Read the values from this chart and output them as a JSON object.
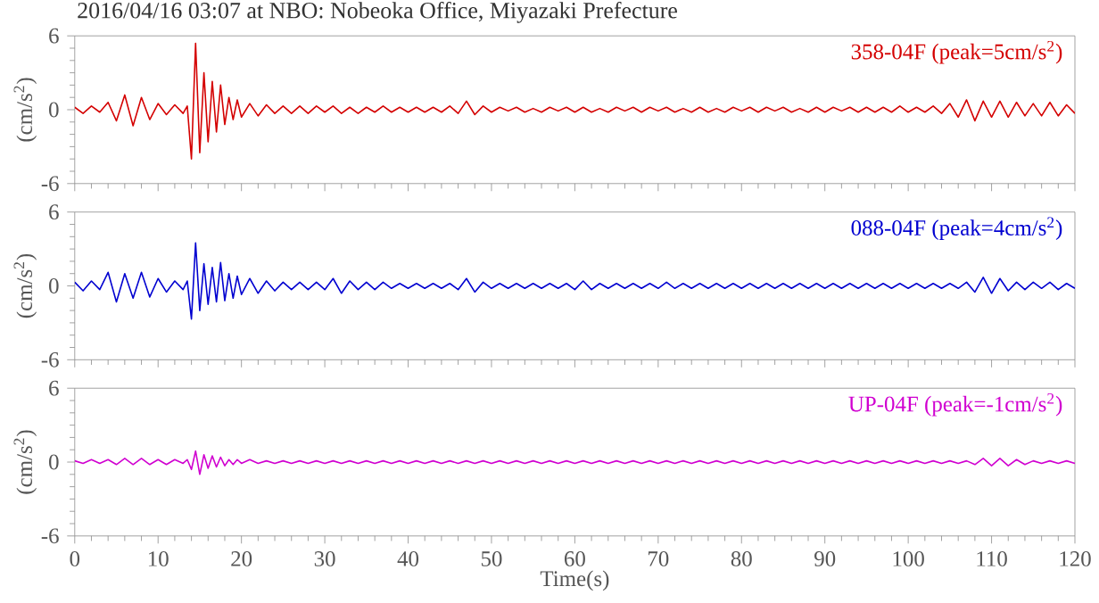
{
  "chart_data": [
    {
      "type": "line",
      "title": "2016/04/16 03:07 at NBO: Nobeoka Office, Miyazaki Prefecture",
      "ylabel": "(cm/s$^{2}$)",
      "xlim": [
        0,
        120
      ],
      "ylim": [
        -6,
        6
      ],
      "xticks": [
        0,
        10,
        20,
        30,
        40,
        50,
        60,
        70,
        80,
        90,
        100,
        110,
        120
      ],
      "yticks": [
        -6,
        0,
        6
      ],
      "tick_labels": "y",
      "x": [
        0,
        1,
        2,
        3,
        4,
        5,
        6,
        7,
        8,
        9,
        10,
        11,
        12,
        13,
        13.5,
        14,
        14.5,
        15,
        15.5,
        16,
        16.5,
        17,
        17.5,
        18,
        18.5,
        19,
        19.5,
        20,
        21,
        22,
        23,
        24,
        25,
        26,
        27,
        28,
        29,
        30,
        31,
        32,
        33,
        34,
        35,
        36,
        37,
        38,
        39,
        40,
        41,
        42,
        43,
        44,
        45,
        46,
        47,
        48,
        49,
        50,
        51,
        52,
        53,
        54,
        55,
        56,
        57,
        58,
        59,
        60,
        61,
        62,
        63,
        64,
        65,
        66,
        67,
        68,
        69,
        70,
        71,
        72,
        73,
        74,
        75,
        76,
        77,
        78,
        79,
        80,
        81,
        82,
        83,
        84,
        85,
        86,
        87,
        88,
        89,
        90,
        91,
        92,
        93,
        94,
        95,
        96,
        97,
        98,
        99,
        100,
        101,
        102,
        103,
        104,
        105,
        106,
        107,
        108,
        109,
        110,
        111,
        112,
        113,
        114,
        115,
        116,
        117,
        118,
        119,
        120
      ],
      "series": [
        {
          "name": "358-04F (peak=5cm/s$^{2}$)",
          "color": "#d40000",
          "values": [
            0.2,
            -0.3,
            0.3,
            -0.2,
            0.6,
            -0.9,
            1.2,
            -1.3,
            1.0,
            -0.8,
            0.5,
            -0.4,
            0.4,
            -0.3,
            0.3,
            -4.0,
            5.4,
            -3.5,
            3.0,
            -2.6,
            2.3,
            -1.8,
            2.0,
            -1.2,
            1.0,
            -0.8,
            0.8,
            -0.6,
            0.5,
            -0.5,
            0.4,
            -0.3,
            0.3,
            -0.3,
            0.3,
            -0.3,
            0.3,
            -0.2,
            0.3,
            -0.3,
            0.2,
            -0.3,
            0.2,
            -0.2,
            0.3,
            -0.2,
            0.2,
            -0.2,
            0.2,
            -0.2,
            0.2,
            -0.2,
            0.3,
            -0.3,
            0.7,
            -0.4,
            0.3,
            -0.2,
            0.2,
            -0.1,
            0.2,
            -0.2,
            0.1,
            -0.2,
            0.2,
            -0.1,
            0.2,
            -0.2,
            0.2,
            -0.2,
            0.1,
            -0.2,
            0.2,
            -0.1,
            0.2,
            -0.2,
            0.2,
            -0.1,
            0.2,
            -0.2,
            0.1,
            -0.2,
            0.2,
            -0.2,
            0.1,
            -0.2,
            0.2,
            -0.1,
            0.2,
            -0.2,
            0.2,
            -0.1,
            0.2,
            -0.2,
            0.1,
            -0.2,
            0.2,
            -0.2,
            0.2,
            -0.1,
            0.2,
            -0.2,
            0.2,
            -0.2,
            0.2,
            -0.2,
            0.3,
            -0.2,
            0.2,
            -0.2,
            0.3,
            -0.3,
            0.5,
            -0.6,
            0.8,
            -0.9,
            0.7,
            -0.6,
            0.7,
            -0.6,
            0.6,
            -0.5,
            0.5,
            -0.5,
            0.6,
            -0.5,
            0.4,
            -0.3
          ]
        }
      ]
    },
    {
      "type": "line",
      "ylabel": "(cm/s$^{2}$)",
      "xlim": [
        0,
        120
      ],
      "ylim": [
        -6,
        6
      ],
      "xticks": [
        0,
        10,
        20,
        30,
        40,
        50,
        60,
        70,
        80,
        90,
        100,
        110,
        120
      ],
      "yticks": [
        -6,
        0,
        6
      ],
      "tick_labels": "y",
      "x": [
        0,
        1,
        2,
        3,
        4,
        5,
        6,
        7,
        8,
        9,
        10,
        11,
        12,
        13,
        13.5,
        14,
        14.5,
        15,
        15.5,
        16,
        16.5,
        17,
        17.5,
        18,
        18.5,
        19,
        19.5,
        20,
        21,
        22,
        23,
        24,
        25,
        26,
        27,
        28,
        29,
        30,
        31,
        32,
        33,
        34,
        35,
        36,
        37,
        38,
        39,
        40,
        41,
        42,
        43,
        44,
        45,
        46,
        47,
        48,
        49,
        50,
        51,
        52,
        53,
        54,
        55,
        56,
        57,
        58,
        59,
        60,
        61,
        62,
        63,
        64,
        65,
        66,
        67,
        68,
        69,
        70,
        71,
        72,
        73,
        74,
        75,
        76,
        77,
        78,
        79,
        80,
        81,
        82,
        83,
        84,
        85,
        86,
        87,
        88,
        89,
        90,
        91,
        92,
        93,
        94,
        95,
        96,
        97,
        98,
        99,
        100,
        101,
        102,
        103,
        104,
        105,
        106,
        107,
        108,
        109,
        110,
        111,
        112,
        113,
        114,
        115,
        116,
        117,
        118,
        119,
        120
      ],
      "series": [
        {
          "name": "088-04F (peak=4cm/s$^{2}$)",
          "color": "#0000d0",
          "values": [
            0.3,
            -0.4,
            0.4,
            -0.3,
            1.1,
            -1.3,
            1.0,
            -1.0,
            1.1,
            -0.9,
            0.6,
            -0.5,
            0.4,
            -0.3,
            0.4,
            -2.7,
            3.5,
            -2.0,
            1.8,
            -1.5,
            1.5,
            -1.3,
            1.9,
            -1.2,
            1.0,
            -1.0,
            0.8,
            -0.7,
            0.6,
            -0.6,
            0.4,
            -0.4,
            0.3,
            -0.3,
            0.3,
            -0.3,
            0.3,
            -0.3,
            0.6,
            -0.6,
            0.4,
            -0.3,
            0.3,
            -0.3,
            0.3,
            -0.2,
            0.2,
            -0.2,
            0.2,
            -0.2,
            0.2,
            -0.2,
            0.2,
            -0.3,
            0.6,
            -0.5,
            0.3,
            -0.2,
            0.2,
            -0.2,
            0.2,
            -0.2,
            0.2,
            -0.2,
            0.2,
            -0.2,
            0.2,
            -0.3,
            0.4,
            -0.3,
            0.2,
            -0.2,
            0.2,
            -0.2,
            0.2,
            -0.2,
            0.2,
            -0.2,
            0.3,
            -0.2,
            0.2,
            -0.2,
            0.2,
            -0.2,
            0.2,
            -0.2,
            0.2,
            -0.2,
            0.2,
            -0.2,
            0.2,
            -0.2,
            0.2,
            -0.2,
            0.2,
            -0.2,
            0.2,
            -0.2,
            0.2,
            -0.2,
            0.2,
            -0.2,
            0.2,
            -0.2,
            0.2,
            -0.2,
            0.2,
            -0.2,
            0.2,
            -0.2,
            0.2,
            -0.2,
            0.2,
            -0.2,
            0.3,
            -0.5,
            0.7,
            -0.6,
            0.6,
            -0.4,
            0.3,
            -0.3,
            0.3,
            -0.2,
            0.3,
            -0.3,
            0.2,
            -0.2
          ]
        }
      ]
    },
    {
      "type": "line",
      "xlabel": "Time(s)",
      "ylabel": "(cm/s$^{2}$)",
      "xlim": [
        0,
        120
      ],
      "ylim": [
        -6,
        6
      ],
      "xticks": [
        0,
        10,
        20,
        30,
        40,
        50,
        60,
        70,
        80,
        90,
        100,
        110,
        120
      ],
      "yticks": [
        -6,
        0,
        6
      ],
      "x": [
        0,
        1,
        2,
        3,
        4,
        5,
        6,
        7,
        8,
        9,
        10,
        11,
        12,
        13,
        13.5,
        14,
        14.5,
        15,
        15.5,
        16,
        16.5,
        17,
        17.5,
        18,
        18.5,
        19,
        19.5,
        20,
        21,
        22,
        23,
        24,
        25,
        26,
        27,
        28,
        29,
        30,
        31,
        32,
        33,
        34,
        35,
        36,
        37,
        38,
        39,
        40,
        41,
        42,
        43,
        44,
        45,
        46,
        47,
        48,
        49,
        50,
        51,
        52,
        53,
        54,
        55,
        56,
        57,
        58,
        59,
        60,
        61,
        62,
        63,
        64,
        65,
        66,
        67,
        68,
        69,
        70,
        71,
        72,
        73,
        74,
        75,
        76,
        77,
        78,
        79,
        80,
        81,
        82,
        83,
        84,
        85,
        86,
        87,
        88,
        89,
        90,
        91,
        92,
        93,
        94,
        95,
        96,
        97,
        98,
        99,
        100,
        101,
        102,
        103,
        104,
        105,
        106,
        107,
        108,
        109,
        110,
        111,
        112,
        113,
        114,
        115,
        116,
        117,
        118,
        119,
        120
      ],
      "series": [
        {
          "name": "UP-04F (peak=-1cm/s$^{2}$)",
          "color": "#d000d0",
          "values": [
            0.1,
            -0.1,
            0.2,
            -0.1,
            0.2,
            -0.2,
            0.3,
            -0.2,
            0.3,
            -0.2,
            0.2,
            -0.2,
            0.2,
            -0.1,
            0.2,
            -0.6,
            0.9,
            -1.0,
            0.6,
            -0.5,
            0.5,
            -0.4,
            0.4,
            -0.3,
            0.2,
            -0.2,
            0.2,
            -0.1,
            0.2,
            -0.1,
            0.1,
            -0.1,
            0.1,
            -0.1,
            0.1,
            -0.1,
            0.1,
            -0.1,
            0.1,
            -0.1,
            0.1,
            -0.1,
            0.1,
            -0.1,
            0.1,
            -0.1,
            0.1,
            -0.1,
            0.1,
            -0.1,
            0.1,
            -0.1,
            0.1,
            -0.1,
            0.1,
            -0.1,
            0.1,
            -0.1,
            0.1,
            -0.1,
            0.1,
            -0.1,
            0.1,
            -0.1,
            0.1,
            -0.1,
            0.1,
            -0.1,
            0.1,
            -0.1,
            0.1,
            -0.1,
            0.1,
            -0.1,
            0.1,
            -0.1,
            0.1,
            -0.1,
            0.1,
            -0.1,
            0.1,
            -0.1,
            0.1,
            -0.1,
            0.1,
            -0.1,
            0.1,
            -0.1,
            0.1,
            -0.1,
            0.1,
            -0.1,
            0.1,
            -0.1,
            0.1,
            -0.1,
            0.1,
            -0.1,
            0.1,
            -0.1,
            0.1,
            -0.1,
            0.1,
            -0.1,
            0.1,
            -0.1,
            0.1,
            -0.1,
            0.1,
            -0.1,
            0.1,
            -0.1,
            0.1,
            -0.1,
            0.1,
            -0.2,
            0.3,
            -0.3,
            0.3,
            -0.3,
            0.2,
            -0.2,
            0.1,
            -0.1,
            0.1,
            -0.1,
            0.1,
            -0.1
          ]
        }
      ]
    }
  ]
}
